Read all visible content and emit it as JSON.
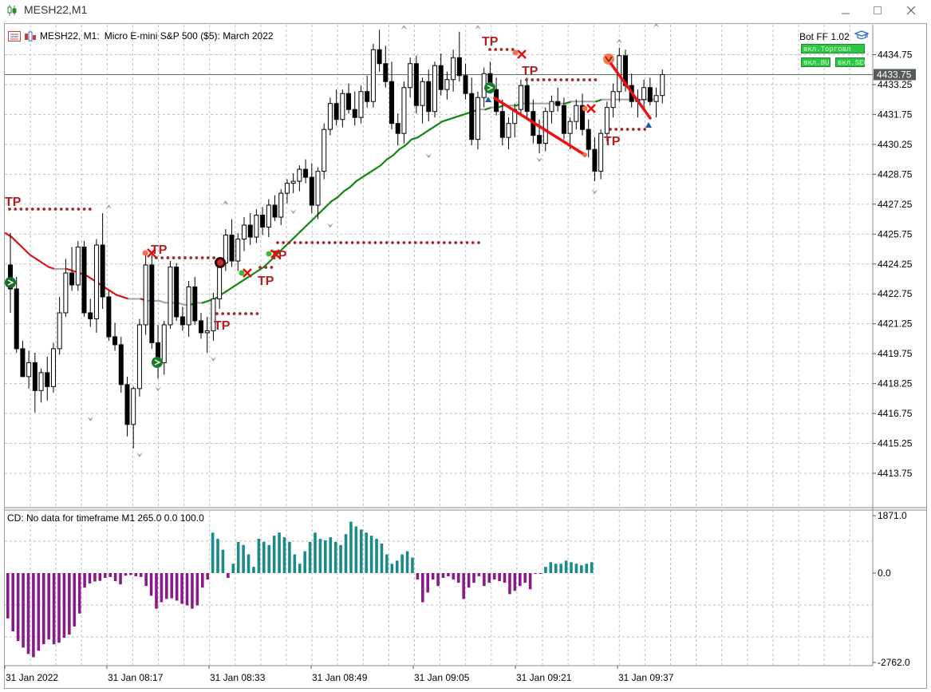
{
  "window": {
    "title": "MESH22,M1",
    "minimize_icon": "minimize-icon",
    "maximize_icon": "maximize-icon",
    "close_icon": "close-icon"
  },
  "chart_info": {
    "symbol_timeframe": "MESH22, M1:",
    "description": "Micro E-mini S&P 500 ($5): March 2022"
  },
  "bot_panel": {
    "title": "Bot FF 1.02",
    "icon": "graduation-cap-icon",
    "trade_button": "вкл.Торговл",
    "buy_button": "вкл.BU",
    "sell_button": "вкл.SEL"
  },
  "price_axis": {
    "labels": [
      "4434.75",
      "4433.25",
      "4431.75",
      "4430.25",
      "4428.75",
      "4427.25",
      "4425.75",
      "4424.25",
      "4422.75",
      "4421.25",
      "4419.75",
      "4418.25",
      "4416.75",
      "4415.25",
      "4413.75"
    ],
    "current_price": "4433.75"
  },
  "time_axis": {
    "labels": [
      "31 Jan 2022",
      "31 Jan 08:17",
      "31 Jan 08:33",
      "31 Jan 08:49",
      "31 Jan 09:05",
      "31 Jan 09:21",
      "31 Jan 09:37"
    ]
  },
  "markers": {
    "tp_label": "TP"
  },
  "indicator": {
    "label": "CD: No data for timeframe M1 265.0 0.0 100.0",
    "axis_labels": [
      "1871.0",
      "0.0",
      "-2762.0"
    ]
  },
  "colors": {
    "bull_candle": "#ffffff",
    "bear_candle": "#000000",
    "ma_up": "#118811",
    "ma_down": "#e01010",
    "ma_flat": "#a8a8a8",
    "tp_dots": "#a52a2a",
    "histogram_positive": "#1a8a8a",
    "histogram_negative": "#8a1a8a"
  },
  "chart_data": {
    "type": "candlestick",
    "symbol": "MESH22",
    "timeframe": "M1",
    "ylim": [
      4412.6,
      4436.2
    ],
    "candles_ohlc": [
      [
        4424.2,
        4425.8,
        4421.8,
        4423.0
      ],
      [
        4423.0,
        4423.6,
        4419.8,
        4420.0
      ],
      [
        4420.0,
        4420.4,
        4418.6,
        4418.6
      ],
      [
        4418.6,
        4419.9,
        4418.0,
        4419.3
      ],
      [
        4419.3,
        4419.8,
        4416.8,
        4417.9
      ],
      [
        4417.9,
        4419.0,
        4417.3,
        4418.8
      ],
      [
        4418.8,
        4419.6,
        4417.4,
        4418.1
      ],
      [
        4418.1,
        4420.3,
        4417.8,
        4420.0
      ],
      [
        4420.0,
        4422.6,
        4419.7,
        4421.8
      ],
      [
        4421.8,
        4424.5,
        4421.6,
        4423.8
      ],
      [
        4423.8,
        4425.1,
        4422.9,
        4423.2
      ],
      [
        4423.2,
        4425.4,
        4422.9,
        4425.1
      ],
      [
        4425.1,
        4425.4,
        4421.6,
        4421.8
      ],
      [
        4421.8,
        4422.5,
        4421.1,
        4421.5
      ],
      [
        4421.5,
        4425.5,
        4420.8,
        4425.2
      ],
      [
        4425.2,
        4426.8,
        4422.0,
        4422.6
      ],
      [
        4422.6,
        4422.9,
        4420.4,
        4420.6
      ],
      [
        4420.6,
        4421.3,
        4419.9,
        4420.2
      ],
      [
        4420.2,
        4420.6,
        4417.8,
        4418.2
      ],
      [
        4418.2,
        4418.6,
        4415.6,
        4416.2
      ],
      [
        4416.2,
        4418.1,
        4415.0,
        4418.0
      ],
      [
        4418.0,
        4421.5,
        4417.6,
        4421.2
      ],
      [
        4421.2,
        4424.8,
        4420.7,
        4424.2
      ],
      [
        4424.2,
        4424.7,
        4420.0,
        4420.3
      ],
      [
        4420.3,
        4421.2,
        4418.5,
        4419.3
      ],
      [
        4419.3,
        4421.4,
        4418.7,
        4421.2
      ],
      [
        4421.2,
        4424.4,
        4421.0,
        4424.1
      ],
      [
        4424.1,
        4424.3,
        4421.4,
        4421.6
      ],
      [
        4421.6,
        4422.1,
        4420.9,
        4421.2
      ],
      [
        4421.2,
        4423.4,
        4420.6,
        4423.1
      ],
      [
        4423.1,
        4423.6,
        4421.2,
        4421.4
      ],
      [
        4421.4,
        4421.8,
        4420.5,
        4420.8
      ],
      [
        4420.8,
        4421.6,
        4419.8,
        4420.9
      ],
      [
        4420.9,
        4422.8,
        4420.4,
        4422.5
      ],
      [
        4422.5,
        4424.6,
        4422.0,
        4424.3
      ],
      [
        4424.3,
        4426.0,
        4423.9,
        4425.7
      ],
      [
        4425.7,
        4426.5,
        4424.1,
        4424.4
      ],
      [
        4424.4,
        4425.8,
        4423.9,
        4425.5
      ],
      [
        4425.5,
        4426.6,
        4424.9,
        4426.2
      ],
      [
        4426.2,
        4426.8,
        4425.2,
        4425.6
      ],
      [
        4425.6,
        4427.0,
        4425.3,
        4426.7
      ],
      [
        4426.7,
        4427.1,
        4425.7,
        4426.1
      ],
      [
        4426.1,
        4427.5,
        4425.6,
        4427.2
      ],
      [
        4427.2,
        4427.7,
        4426.4,
        4426.6
      ],
      [
        4426.6,
        4428.0,
        4426.2,
        4427.8
      ],
      [
        4427.8,
        4428.5,
        4427.3,
        4428.3
      ],
      [
        4428.3,
        4428.8,
        4427.8,
        4428.4
      ],
      [
        4428.4,
        4429.2,
        4427.9,
        4429.0
      ],
      [
        4429.0,
        4429.5,
        4428.3,
        4428.6
      ],
      [
        4428.6,
        4429.3,
        4426.8,
        4427.2
      ],
      [
        4427.2,
        4429.1,
        4426.5,
        4428.9
      ],
      [
        4428.9,
        4431.3,
        4428.5,
        4431.0
      ],
      [
        4431.0,
        4432.6,
        4430.7,
        4432.3
      ],
      [
        4432.3,
        4433.0,
        4431.2,
        4431.5
      ],
      [
        4431.5,
        4433.0,
        4431.1,
        4432.8
      ],
      [
        4432.8,
        4433.3,
        4431.8,
        4432.0
      ],
      [
        4432.0,
        4432.9,
        4431.2,
        4431.6
      ],
      [
        4431.6,
        4433.2,
        4431.3,
        4432.9
      ],
      [
        4432.9,
        4433.7,
        4432.1,
        4432.4
      ],
      [
        4432.4,
        4435.3,
        4432.1,
        4435.0
      ],
      [
        4435.0,
        4436.0,
        4433.9,
        4434.3
      ],
      [
        4434.3,
        4435.2,
        4433.1,
        4433.4
      ],
      [
        4433.4,
        4434.4,
        4431.0,
        4431.3
      ],
      [
        4431.3,
        4431.8,
        4430.2,
        4430.8
      ],
      [
        4430.8,
        4433.4,
        4430.3,
        4433.1
      ],
      [
        4433.1,
        4434.6,
        4432.6,
        4434.3
      ],
      [
        4434.3,
        4434.7,
        4431.8,
        4432.2
      ],
      [
        4432.2,
        4433.6,
        4431.3,
        4433.4
      ],
      [
        4433.4,
        4434.0,
        4431.4,
        4431.9
      ],
      [
        4431.9,
        4434.4,
        4431.6,
        4434.2
      ],
      [
        4434.2,
        4434.8,
        4432.7,
        4433.0
      ],
      [
        4433.0,
        4433.9,
        4432.5,
        4433.5
      ],
      [
        4433.5,
        4435.0,
        4432.9,
        4434.6
      ],
      [
        4434.6,
        4435.9,
        4433.4,
        4433.7
      ],
      [
        4433.7,
        4434.3,
        4432.5,
        4432.8
      ],
      [
        4432.8,
        4433.6,
        4430.2,
        4430.5
      ],
      [
        4430.5,
        4432.9,
        4430.0,
        4432.6
      ],
      [
        4432.6,
        4434.1,
        4432.1,
        4433.8
      ],
      [
        4433.8,
        4434.4,
        4432.8,
        4433.0
      ],
      [
        4433.0,
        4433.6,
        4431.7,
        4431.9
      ],
      [
        4431.9,
        4432.5,
        4430.2,
        4430.6
      ],
      [
        4430.6,
        4431.6,
        4430.0,
        4431.3
      ],
      [
        4431.3,
        4432.3,
        4430.6,
        4432.0
      ],
      [
        4432.0,
        4433.5,
        4431.7,
        4433.2
      ],
      [
        4433.2,
        4433.6,
        4431.6,
        4431.9
      ],
      [
        4431.9,
        4432.5,
        4430.3,
        4430.7
      ],
      [
        4430.7,
        4431.5,
        4429.8,
        4430.3
      ],
      [
        4430.3,
        4432.1,
        4429.9,
        4431.9
      ],
      [
        4431.9,
        4432.7,
        4431.3,
        4432.4
      ],
      [
        4432.4,
        4433.1,
        4431.9,
        4432.2
      ],
      [
        4432.2,
        4432.6,
        4430.5,
        4430.8
      ],
      [
        4430.8,
        4431.6,
        4430.0,
        4431.4
      ],
      [
        4431.4,
        4432.5,
        4431.0,
        4432.2
      ],
      [
        4432.2,
        4432.8,
        4430.7,
        4431.0
      ],
      [
        4431.0,
        4431.5,
        4429.6,
        4430.0
      ],
      [
        4430.0,
        4430.6,
        4428.4,
        4428.9
      ],
      [
        4428.9,
        4431.0,
        4428.5,
        4430.8
      ],
      [
        4430.8,
        4432.4,
        4430.4,
        4432.1
      ],
      [
        4432.1,
        4433.3,
        4431.6,
        4432.9
      ],
      [
        4432.9,
        4435.1,
        4432.4,
        4434.7
      ],
      [
        4434.7,
        4435.0,
        4432.9,
        4433.2
      ],
      [
        4433.2,
        4433.8,
        4432.1,
        4432.4
      ],
      [
        4432.4,
        4433.0,
        4431.6,
        4432.5
      ],
      [
        4432.5,
        4433.5,
        4432.0,
        4433.1
      ],
      [
        4433.1,
        4433.6,
        4432.2,
        4432.4
      ],
      [
        4432.4,
        4433.1,
        4431.6,
        4432.7
      ],
      [
        4432.7,
        4434.0,
        4432.3,
        4433.75
      ]
    ],
    "ma_line": [
      4425.8,
      4425.6,
      4425.3,
      4425.0,
      4424.7,
      4424.5,
      4424.3,
      4424.1,
      4424.0,
      4424.0,
      4424.0,
      4423.9,
      4423.8,
      4423.7,
      4423.5,
      4423.3,
      4423.1,
      4422.9,
      4422.7,
      4422.6,
      4422.5,
      4422.5,
      4422.5,
      4422.4,
      4422.4,
      4422.4,
      4422.3,
      4422.3,
      4422.3,
      4422.2,
      4422.2,
      4422.3,
      4422.3,
      4422.4,
      4422.5,
      4422.7,
      4422.9,
      4423.1,
      4423.3,
      4423.5,
      4423.7,
      4423.9,
      4424.1,
      4424.4,
      4424.7,
      4425.0,
      4425.3,
      4425.6,
      4425.9,
      4426.2,
      4426.5,
      4426.8,
      4427.1,
      4427.4,
      4427.6,
      4427.9,
      4428.1,
      4428.4,
      4428.6,
      4428.8,
      4429.0,
      4429.2,
      4429.5,
      4429.7,
      4430.0,
      4430.2,
      4430.5,
      4430.6,
      4430.8,
      4431.0,
      4431.2,
      4431.4,
      4431.5,
      4431.6,
      4431.7,
      4431.8,
      4431.9,
      4432.0,
      4432.0,
      4432.1,
      4432.1,
      4432.2,
      4432.2,
      4432.2,
      4432.3,
      4432.3,
      4432.3,
      4432.3,
      4432.3,
      4432.3,
      4432.3,
      4432.3,
      4432.4,
      4432.4,
      4432.4,
      4432.4,
      4432.4,
      4432.5,
      4432.5,
      4432.5,
      4432.5,
      4432.5,
      4432.5,
      4432.5,
      4432.5,
      4432.5,
      4432.5
    ],
    "histogram": {
      "ylim": [
        -2762.0,
        1871.0
      ],
      "values": [
        -1400,
        -1800,
        -2100,
        -2300,
        -2500,
        -2600,
        -2400,
        -2200,
        -2050,
        -2200,
        -2150,
        -2000,
        -1900,
        -1650,
        -1250,
        -450,
        -320,
        -260,
        -240,
        -150,
        -120,
        -250,
        -350,
        -80,
        -60,
        -100,
        -120,
        -400,
        -700,
        -1100,
        -900,
        -800,
        -780,
        -850,
        -950,
        -1000,
        -1100,
        -1000,
        -450,
        -200,
        1300,
        1100,
        750,
        -150,
        300,
        1000,
        900,
        600,
        200,
        1100,
        1000,
        900,
        1200,
        1300,
        1150,
        1000,
        600,
        300,
        700,
        1000,
        1300,
        1100,
        1050,
        1150,
        1000,
        900,
        1250,
        1650,
        1500,
        1400,
        1300,
        1200,
        1100,
        950,
        600,
        300,
        400,
        600,
        700,
        500,
        -200,
        -900,
        -600,
        -200,
        -400,
        -150,
        -100,
        -200,
        -300,
        -800,
        -450,
        -300,
        -100,
        -400,
        -300,
        -200,
        -250,
        -300,
        -650,
        -550,
        -400,
        -300,
        -500,
        -10,
        -20,
        200,
        350,
        300,
        300,
        400,
        350,
        300,
        250,
        300,
        350
      ]
    }
  }
}
